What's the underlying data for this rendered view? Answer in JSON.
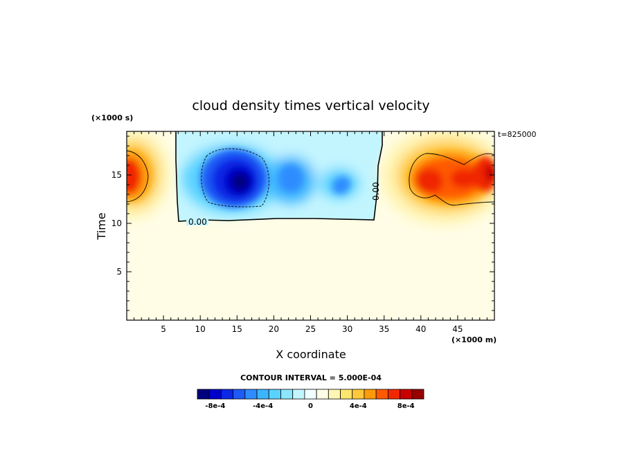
{
  "chart_data": {
    "type": "heatmap",
    "title": "cloud density times vertical velocity",
    "xlabel": "X coordinate",
    "ylabel": "Time",
    "x_scale_label": "(×1000 m)",
    "y_scale_label": "(×1000 s)",
    "time_stamp": "t=825000",
    "xlim": [
      0,
      50
    ],
    "ylim": [
      0,
      19.5
    ],
    "x_ticks": [
      5,
      10,
      15,
      20,
      25,
      30,
      35,
      40,
      45
    ],
    "y_ticks": [
      5,
      10,
      15
    ],
    "contour_label": "0.00",
    "contour_interval_text": "CONTOUR INTERVAL = 5.000E-04",
    "colorbar": {
      "colors": [
        "#00007e",
        "#0000c8",
        "#0a28e6",
        "#1e5af5",
        "#2d8cff",
        "#3cb4ff",
        "#5ad2ff",
        "#8ce6ff",
        "#c3f5ff",
        "#f0ffff",
        "#fffde6",
        "#fff5b4",
        "#ffe66e",
        "#ffc83c",
        "#ff9b0a",
        "#ff5a00",
        "#f02800",
        "#c80000",
        "#960000"
      ],
      "tick_labels": [
        "-8e-4",
        "-4e-4",
        "0",
        "4e-4",
        "8e-4"
      ],
      "tick_values": [
        -0.0008,
        -0.0004,
        0,
        0.0004,
        0.0008
      ]
    },
    "features": [
      {
        "kind": "negative",
        "x": 15.5,
        "y": 15.0,
        "value": -0.00095
      },
      {
        "kind": "negative",
        "x": 22.0,
        "y": 15.5,
        "value": -0.00045
      },
      {
        "kind": "negative",
        "x": 29.0,
        "y": 14.2,
        "value": -0.0004
      },
      {
        "kind": "positive",
        "x": 0.8,
        "y": 15.0,
        "value": 0.0008
      },
      {
        "kind": "positive",
        "x": 42.5,
        "y": 15.0,
        "value": 0.00085
      },
      {
        "kind": "positive",
        "x": 49.0,
        "y": 15.0,
        "value": 0.0009
      }
    ]
  }
}
